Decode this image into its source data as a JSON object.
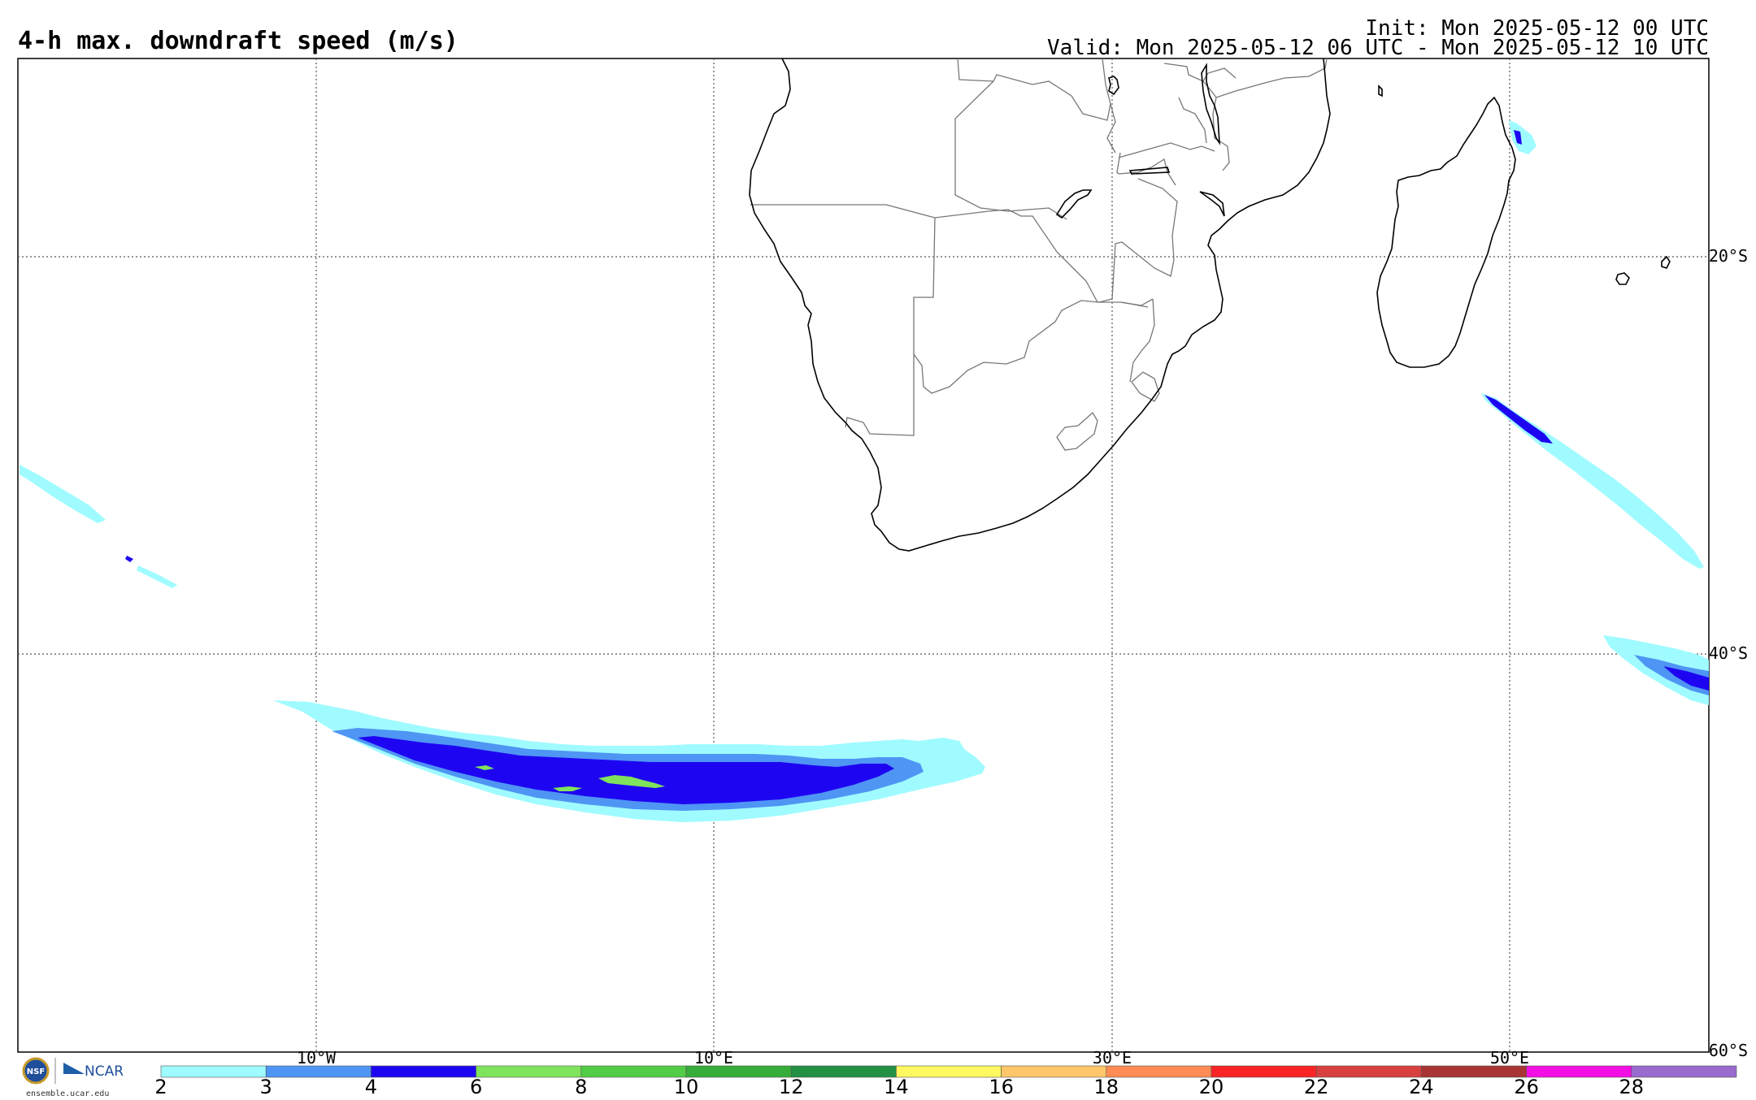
{
  "title": "4-h max. downdraft speed (m/s)",
  "init_text": "Init: Mon 2025-05-12 00 UTC",
  "valid_text": "Valid: Mon 2025-05-12 06 UTC - Mon 2025-05-12 10 UTC",
  "longitude_labels": [
    "10°W",
    "10°E",
    "30°E",
    "50°E"
  ],
  "latitude_labels": [
    "20°S",
    "40°S",
    "60°S"
  ],
  "logo": {
    "nsf": "NSF",
    "ncar": "NCAR",
    "url": "ensemble.ucar.edu"
  },
  "colorbar": {
    "ticks": [
      "2",
      "3",
      "4",
      "6",
      "8",
      "10",
      "12",
      "14",
      "16",
      "18",
      "20",
      "22",
      "24",
      "26",
      "28"
    ],
    "colors": [
      "#9ffbff",
      "#4f95f4",
      "#1e05f2",
      "#7fe35c",
      "#51cc45",
      "#35ad38",
      "#229144",
      "#fff860",
      "#ffc66a",
      "#ff8c54",
      "#fa2424",
      "#d84040",
      "#a83434",
      "#f30ee4",
      "#9a6acf"
    ]
  },
  "map_data": {
    "projection": "cylindrical",
    "lon_range": [
      -25,
      60
    ],
    "lat_range": [
      -60,
      -10
    ],
    "fields": [
      {
        "name": "main-band",
        "level": "2-3",
        "color": "#9ffbff"
      },
      {
        "name": "main-band",
        "level": "3-4",
        "color": "#4f95f4"
      },
      {
        "name": "main-band",
        "level": "4-6",
        "color": "#1e05f2"
      },
      {
        "name": "main-band",
        "level": "6-8",
        "color": "#7fe35c"
      }
    ]
  }
}
